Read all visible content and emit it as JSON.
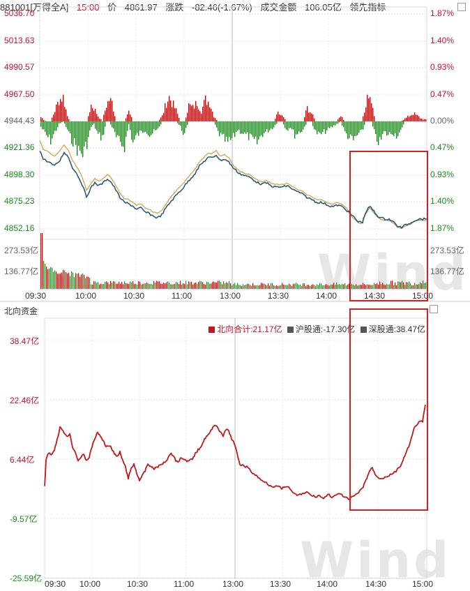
{
  "header": {
    "code": "881001[万得全A]",
    "time": "15:00",
    "price_label": "价",
    "price": "4861.97",
    "change_label": "涨跌",
    "change": "-82.46(-1.67%)",
    "volume_label": "成交金额",
    "volume": "106.05亿",
    "indicator": "领先指标"
  },
  "top_chart": {
    "price_ticks": [
      "5036.70",
      "5013.63",
      "4990.57",
      "4967.50",
      "4944.43",
      "4921.36",
      "4898.30",
      "4875.23",
      "4852.16"
    ],
    "pct_ticks": [
      "1.87%",
      "1.40%",
      "0.93%",
      "0.47%",
      "0.00%",
      "0.47%",
      "0.93%",
      "1.40%",
      "1.87%"
    ],
    "volume_ticks": [
      "273.53亿",
      "136.77亿"
    ],
    "time_labels": [
      "09:30",
      "10:00",
      "10:30",
      "11:00",
      "13:00",
      "13:30",
      "14:00",
      "14:30",
      "15:00"
    ]
  },
  "bottom_chart": {
    "title": "北向资金",
    "legend": {
      "northbound": "北向合计:21.17亿",
      "shanghai": "沪股通:-17.30亿",
      "shenzhen": "深股通:38.47亿"
    },
    "y_ticks": [
      "38.47亿",
      "22.46亿",
      "6.44亿",
      "-9.57亿",
      "-25.59亿"
    ],
    "time_labels": [
      "09:30",
      "10:00",
      "10:30",
      "11:00",
      "13:00",
      "13:30",
      "14:00",
      "14:30",
      "15:00"
    ]
  },
  "watermark": "Wind",
  "colors": {
    "up": "#d40000",
    "down": "#1a8a1a",
    "price": "#2a5a7a",
    "avg": "#c8a040",
    "north": "#c01818"
  },
  "chart_data": [
    {
      "type": "line",
      "title": "",
      "x": [
        "09:30",
        "09:45",
        "10:00",
        "10:15",
        "10:30",
        "10:45",
        "11:00",
        "11:15",
        "11:30",
        "13:00",
        "13:15",
        "13:30",
        "13:45",
        "14:00",
        "14:15",
        "14:30",
        "14:45",
        "15:00"
      ],
      "series": [
        {
          "name": "",
          "values": [
            4910,
            4903,
            4883,
            4886,
            4870,
            4862,
            4872,
            4888,
            4906,
            4911,
            4896,
            4893,
            4884,
            4876,
            4866,
            4867,
            4860,
            4862
          ]
        }
      ],
      "ylim": [
        4852.16,
        5036.7
      ]
    },
    {
      "type": "line",
      "title": "",
      "x": [
        "09:30",
        "09:45",
        "10:00",
        "10:15",
        "10:30",
        "10:45",
        "11:00",
        "11:15",
        "11:30",
        "13:00",
        "13:15",
        "13:30",
        "13:45",
        "14:00",
        "14:15",
        "14:30",
        "14:45",
        "15:00"
      ],
      "series": [
        {
          "name": "北向合计",
          "values": [
            0.3,
            10.5,
            5.9,
            9.8,
            1.0,
            5.9,
            6.5,
            8.8,
            13.3,
            3.3,
            -0.8,
            -1.8,
            -3.6,
            -3.9,
            -1.8,
            2.8,
            6.8,
            21.17
          ]
        }
      ],
      "ylim": [
        -25.59,
        38.47
      ]
    }
  ]
}
